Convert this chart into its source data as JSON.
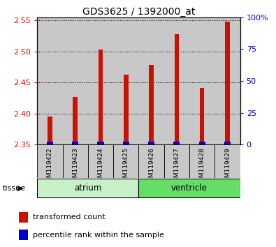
{
  "title": "GDS3625 / 1392000_at",
  "samples": [
    "GSM119422",
    "GSM119423",
    "GSM119424",
    "GSM119425",
    "GSM119426",
    "GSM119427",
    "GSM119428",
    "GSM119429"
  ],
  "transformed_counts": [
    2.395,
    2.427,
    2.503,
    2.463,
    2.478,
    2.528,
    2.441,
    2.548
  ],
  "ymin": 2.35,
  "ymax": 2.555,
  "yticks": [
    2.35,
    2.4,
    2.45,
    2.5,
    2.55
  ],
  "right_yticks": [
    0,
    25,
    50,
    75,
    100
  ],
  "right_ytick_labels": [
    "0",
    "25",
    "50",
    "75",
    "100%"
  ],
  "tissue_groups": [
    {
      "label": "atrium",
      "start": 0,
      "end": 4,
      "color": "#c8f0c8"
    },
    {
      "label": "ventricle",
      "start": 4,
      "end": 8,
      "color": "#66dd66"
    }
  ],
  "bar_color_red": "#cc1100",
  "bar_color_blue": "#0000cc",
  "bg_color_sample": "#c8c8c8",
  "baseline": 2.35,
  "blue_bar_height": 0.005,
  "blue_bar_pct": [
    3,
    4,
    3,
    3,
    4,
    3,
    3,
    3
  ]
}
